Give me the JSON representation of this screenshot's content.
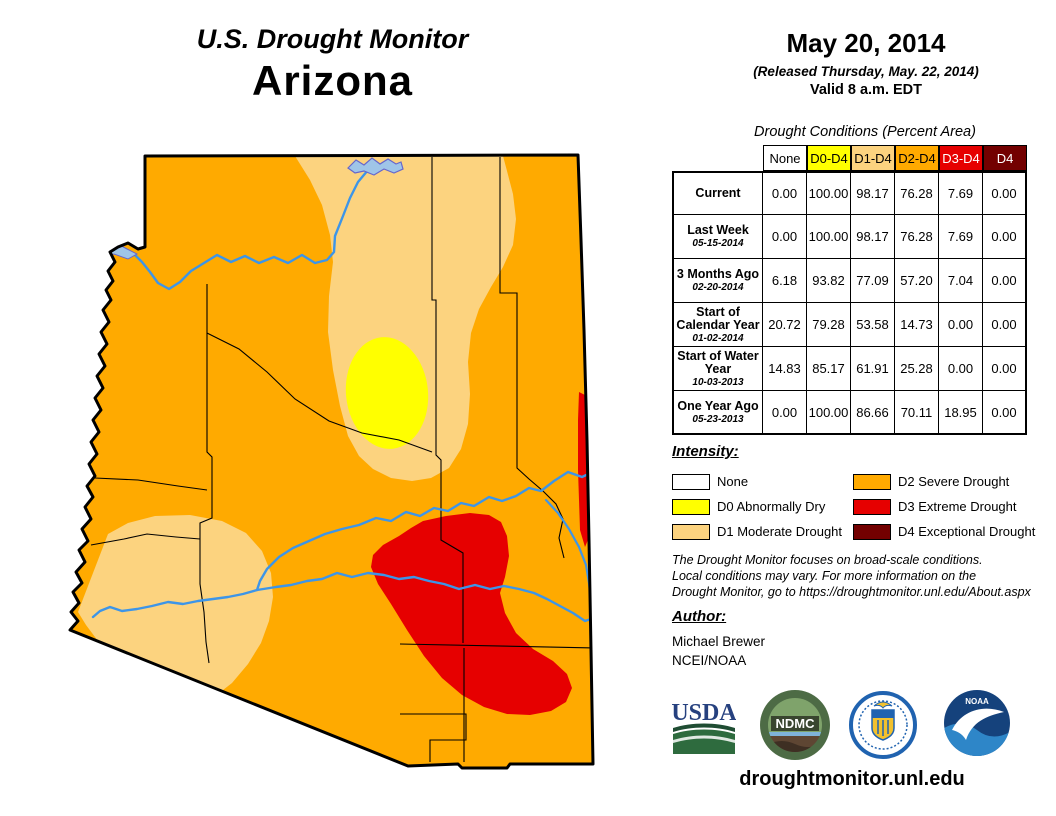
{
  "header": {
    "title": "U.S. Drought Monitor",
    "region": "Arizona"
  },
  "date_block": {
    "date": "May 20, 2014",
    "released": "(Released Thursday, May. 22, 2014)",
    "valid": "Valid 8 a.m. EDT"
  },
  "table": {
    "title": "Drought Conditions (Percent Area)",
    "columns": [
      {
        "label": "None",
        "bg": "#FFFFFF",
        "fg": "#000000"
      },
      {
        "label": "D0-D4",
        "bg": "#FFFF00",
        "fg": "#000000"
      },
      {
        "label": "D1-D4",
        "bg": "#FCD37F",
        "fg": "#000000"
      },
      {
        "label": "D2-D4",
        "bg": "#FFAA00",
        "fg": "#000000"
      },
      {
        "label": "D3-D4",
        "bg": "#E60000",
        "fg": "#FFFFFF"
      },
      {
        "label": "D4",
        "bg": "#730000",
        "fg": "#FFFFFF"
      }
    ],
    "rows": [
      {
        "label": "Current",
        "date": "",
        "values": [
          "0.00",
          "100.00",
          "98.17",
          "76.28",
          "7.69",
          "0.00"
        ]
      },
      {
        "label": "Last Week",
        "date": "05-15-2014",
        "values": [
          "0.00",
          "100.00",
          "98.17",
          "76.28",
          "7.69",
          "0.00"
        ]
      },
      {
        "label": "3 Months Ago",
        "date": "02-20-2014",
        "values": [
          "6.18",
          "93.82",
          "77.09",
          "57.20",
          "7.04",
          "0.00"
        ]
      },
      {
        "label": "Start of Calendar Year",
        "date": "01-02-2014",
        "values": [
          "20.72",
          "79.28",
          "53.58",
          "14.73",
          "0.00",
          "0.00"
        ]
      },
      {
        "label": "Start of Water Year",
        "date": "10-03-2013",
        "values": [
          "14.83",
          "85.17",
          "61.91",
          "25.28",
          "0.00",
          "0.00"
        ]
      },
      {
        "label": "One Year Ago",
        "date": "05-23-2013",
        "values": [
          "0.00",
          "100.00",
          "86.66",
          "70.11",
          "18.95",
          "0.00"
        ]
      }
    ]
  },
  "legend": {
    "title": "Intensity:",
    "items": [
      {
        "label": "None",
        "color": "#FFFFFF"
      },
      {
        "label": "D0 Abnormally Dry",
        "color": "#FFFF00"
      },
      {
        "label": "D1 Moderate Drought",
        "color": "#FCD37F"
      },
      {
        "label": "D2 Severe Drought",
        "color": "#FFAA00"
      },
      {
        "label": "D3 Extreme Drought",
        "color": "#E60000"
      },
      {
        "label": "D4 Exceptional Drought",
        "color": "#730000"
      }
    ]
  },
  "notes": {
    "line1": "The Drought Monitor focuses on broad-scale conditions.",
    "line2": "Local conditions may vary. For more information on the",
    "line3": "Drought Monitor, go to https://droughtmonitor.unl.edu/About.aspx"
  },
  "author": {
    "title": "Author:",
    "name": "Michael Brewer",
    "org": "NCEI/NOAA"
  },
  "footer": {
    "website": "droughtmonitor.unl.edu",
    "logos": [
      {
        "name": "usda",
        "text": "USDA"
      },
      {
        "name": "ndmc",
        "text": "NDMC"
      },
      {
        "name": "commerce",
        "text": ""
      },
      {
        "name": "noaa",
        "text": "NOAA"
      }
    ]
  },
  "map": {
    "colors": {
      "none": "#FFFFFF",
      "d0": "#FFFF00",
      "d1": "#FCD37F",
      "d2": "#FFAA00",
      "d3": "#E60000",
      "d4": "#730000",
      "river": "#3D95E8",
      "lake": "#9FC5E8",
      "lake_edge": "#6666CC",
      "border": "#000000"
    }
  }
}
